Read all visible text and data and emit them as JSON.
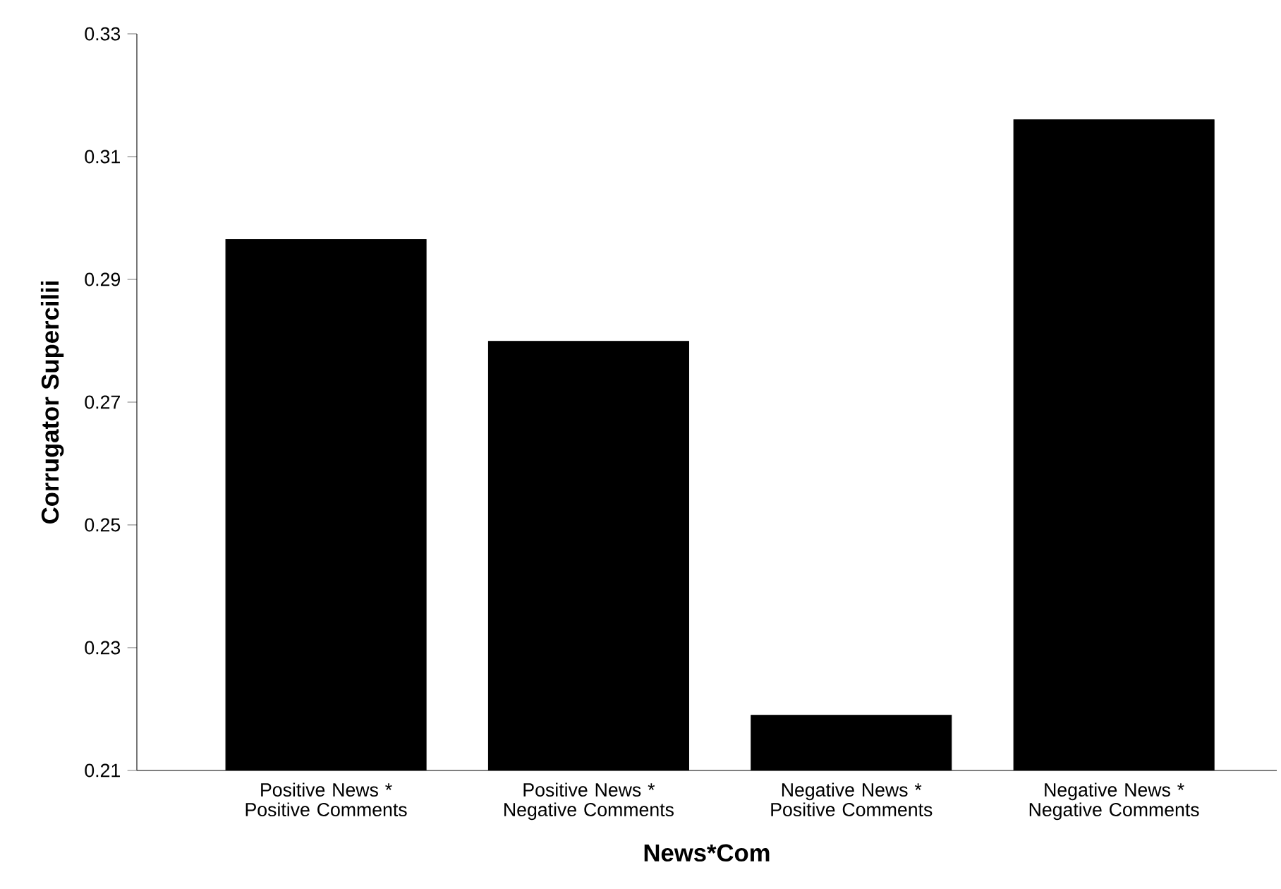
{
  "chart_data": {
    "type": "bar",
    "xlabel": "News*Com",
    "ylabel": "Corrugator Supercilii",
    "categories": [
      "Positive News * Positive Comments",
      "Positive News * Negative Comments",
      "Negative News * Positive Comments",
      "Negative News * Negative Comments"
    ],
    "values": [
      0.2965,
      0.2799,
      0.219,
      0.316
    ],
    "color": "#000000",
    "ylim": [
      0.21,
      0.33
    ],
    "yticks": [
      0.21,
      0.23,
      0.25,
      0.27,
      0.29,
      0.31,
      0.33
    ]
  }
}
